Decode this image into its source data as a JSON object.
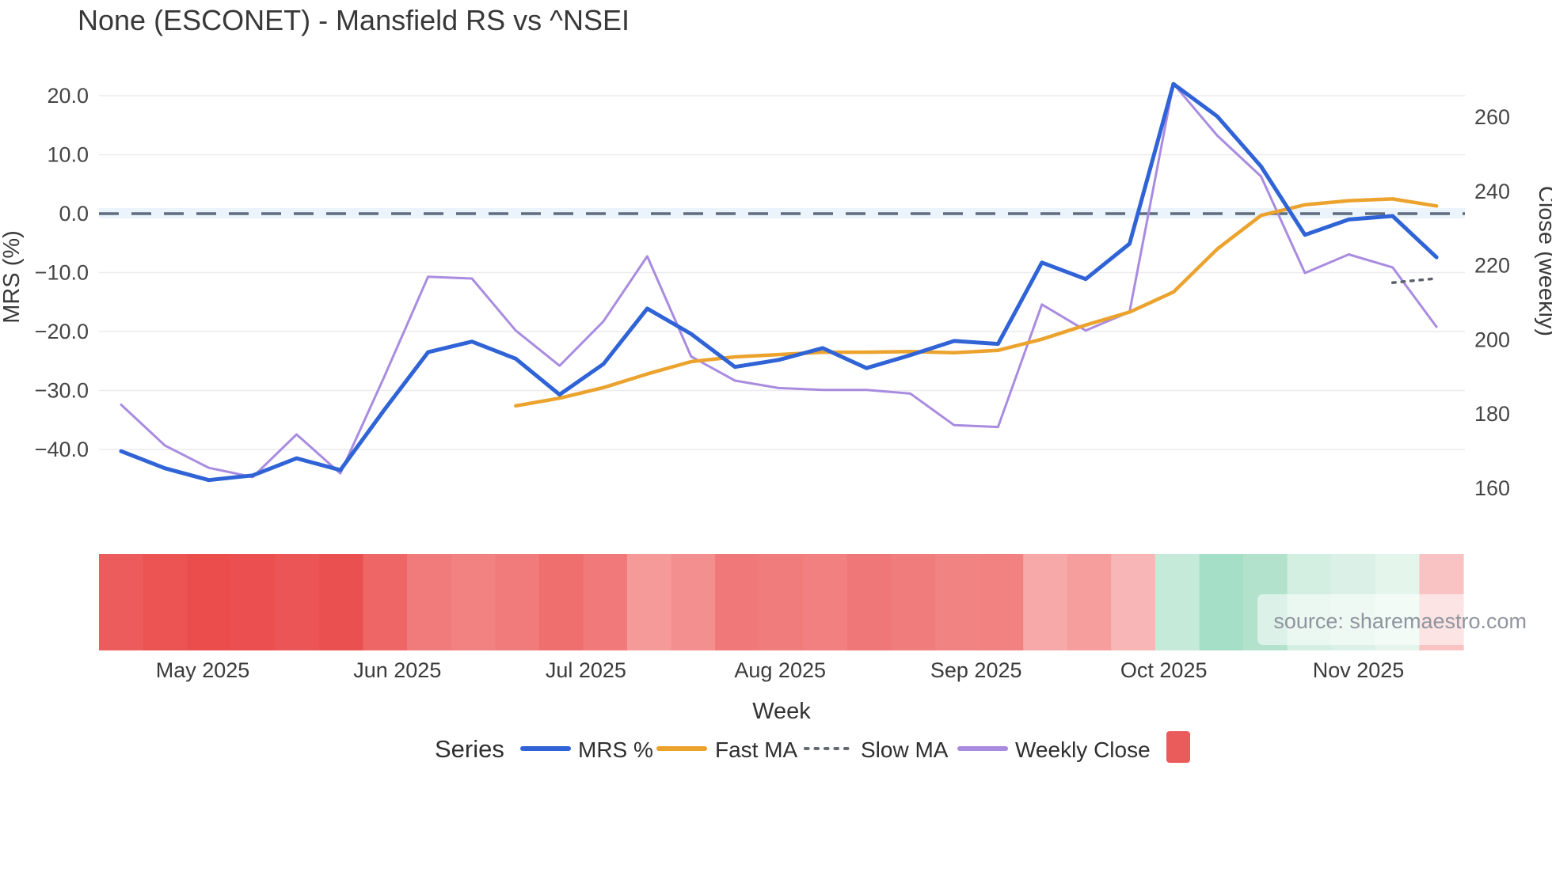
{
  "title": "None (ESCONET) - Mansfield RS vs ^NSEI",
  "source_text": "source: sharemaestro.com",
  "left_axis": {
    "title": "MRS (%)",
    "tick_labels": [
      "20.0",
      "10.0",
      "0.0",
      "−10.0",
      "−20.0",
      "−30.0",
      "−40.0"
    ],
    "tick_values": [
      20,
      10,
      0,
      -10,
      -20,
      -30,
      -40
    ]
  },
  "right_axis": {
    "title": "Close (weekly)",
    "tick_labels": [
      "260",
      "240",
      "220",
      "200",
      "180",
      "160"
    ],
    "tick_values": [
      260,
      240,
      220,
      200,
      180,
      160
    ]
  },
  "x_axis": {
    "title": "Week",
    "month_labels": [
      "May 2025",
      "Jun 2025",
      "Jul 2025",
      "Aug 2025",
      "Sep 2025",
      "Oct 2025",
      "Nov 2025"
    ],
    "month_week_index": [
      1.86,
      6.3,
      10.6,
      15.03,
      19.5,
      23.78,
      28.22
    ]
  },
  "legend": {
    "series_label": "Series",
    "items": [
      {
        "label": "MRS %",
        "swatch": "line",
        "color": "#2f63d6"
      },
      {
        "label": "Fast MA",
        "swatch": "line",
        "color": "#eca32e"
      },
      {
        "label": "Slow MA",
        "swatch": "dotted",
        "color": "#636a74"
      },
      {
        "label": "Weekly Close",
        "swatch": "line",
        "color": "#a98ce0"
      },
      {
        "label": "",
        "swatch": "rect",
        "color": "#ea5c5c"
      }
    ]
  },
  "colors": {
    "mrs_line": "#2f63d6",
    "fast_ma_line": "#eca32e",
    "slow_ma_line": "#5c636d",
    "weekly_close_line": "#a98ce0",
    "zero_dash_line": "#5f6d7e",
    "zero_band": "#e8f1fb",
    "gridline": "#ebebf0",
    "legend_heatmap_swatch": "#ea5c5c"
  },
  "chart_data": {
    "type": "line",
    "x_week_dates": [
      "2025-04-18",
      "2025-04-25",
      "2025-05-02",
      "2025-05-09",
      "2025-05-16",
      "2025-05-23",
      "2025-05-30",
      "2025-06-06",
      "2025-06-13",
      "2025-06-20",
      "2025-06-27",
      "2025-07-04",
      "2025-07-11",
      "2025-07-18",
      "2025-07-25",
      "2025-08-01",
      "2025-08-08",
      "2025-08-15",
      "2025-08-22",
      "2025-08-29",
      "2025-09-05",
      "2025-09-12",
      "2025-09-19",
      "2025-09-26",
      "2025-10-03",
      "2025-10-10",
      "2025-10-17",
      "2025-10-24",
      "2025-10-31",
      "2025-11-07",
      "2025-11-14"
    ],
    "xlabel": "Week",
    "ylabel_left": "MRS (%)",
    "ylabel_right": "Close (weekly)",
    "left_ylim": [
      -47,
      26
    ],
    "right_ylim": [
      155,
      272
    ],
    "grid": "horizontal-left-ticks",
    "legend_position": "bottom-center",
    "series": [
      {
        "name": "MRS %",
        "axis": "left",
        "style": "solid",
        "color": "#2f63d6",
        "width": 5,
        "values": [
          -40.3,
          -43.2,
          -45.2,
          -44.4,
          -41.5,
          -43.5,
          -33.3,
          -23.5,
          -21.7,
          -24.6,
          -30.7,
          -25.5,
          -16.1,
          -20.4,
          -26.0,
          -24.8,
          -22.8,
          -26.2,
          -24.0,
          -21.6,
          -22.1,
          -8.3,
          -11.1,
          -5.1,
          22.0,
          16.5,
          8.0,
          -3.6,
          -1.0,
          -0.4,
          -7.4
        ]
      },
      {
        "name": "Fast MA",
        "axis": "left",
        "style": "solid",
        "color": "#eca32e",
        "width": 4.5,
        "values": [
          null,
          null,
          null,
          null,
          null,
          null,
          null,
          null,
          null,
          -32.6,
          -31.3,
          -29.5,
          -27.2,
          -25.1,
          -24.3,
          -23.9,
          -23.5,
          -23.5,
          -23.4,
          -23.6,
          -23.2,
          -21.3,
          -18.9,
          -16.7,
          -13.3,
          -6.0,
          -0.3,
          1.5,
          2.2,
          2.5,
          1.3
        ]
      },
      {
        "name": "Slow MA",
        "axis": "left",
        "style": "dotted",
        "color": "#5c636d",
        "width": 3.5,
        "values": [
          null,
          null,
          null,
          null,
          null,
          null,
          null,
          null,
          null,
          null,
          null,
          null,
          null,
          null,
          null,
          null,
          null,
          null,
          null,
          null,
          null,
          null,
          null,
          null,
          null,
          null,
          null,
          null,
          null,
          -11.7,
          -11.0
        ]
      },
      {
        "name": "Weekly Close",
        "axis": "right",
        "style": "solid",
        "color": "#a98ce0",
        "width": 3,
        "values": [
          182.5,
          171.5,
          165.5,
          163,
          174.5,
          164,
          190,
          217,
          216.5,
          202.5,
          193,
          205,
          222.5,
          195.5,
          189,
          187,
          186.5,
          186.5,
          185.5,
          177,
          176.5,
          209.5,
          202.5,
          207.5,
          269,
          255,
          244,
          218,
          223,
          219.5,
          203.5
        ]
      }
    ],
    "zero_reference_line": {
      "axis": "left",
      "value": 0,
      "style": "dashed"
    },
    "heatmap_strip": {
      "description": "weekly MRS heat cells, red negative to green positive",
      "cell_colors": [
        "#ed5c5c",
        "#ec5353",
        "#eb4d4d",
        "#eb4f4f",
        "#ec5555",
        "#eb5050",
        "#ee6666",
        "#f17b7b",
        "#f28181",
        "#f17b7b",
        "#ef6e6e",
        "#f17979",
        "#f59999",
        "#f48f8f",
        "#f07878",
        "#f17c7c",
        "#f28080",
        "#f07777",
        "#f17c7c",
        "#f28383",
        "#f28181",
        "#f7a8a8",
        "#f69e9e",
        "#f9b6b6",
        "#c6ead9",
        "#a6dfc8",
        "#b2e2cc",
        "#d3efe2",
        "#dbf1e7",
        "#e4f5ec",
        "#f9c3c3"
      ]
    }
  }
}
